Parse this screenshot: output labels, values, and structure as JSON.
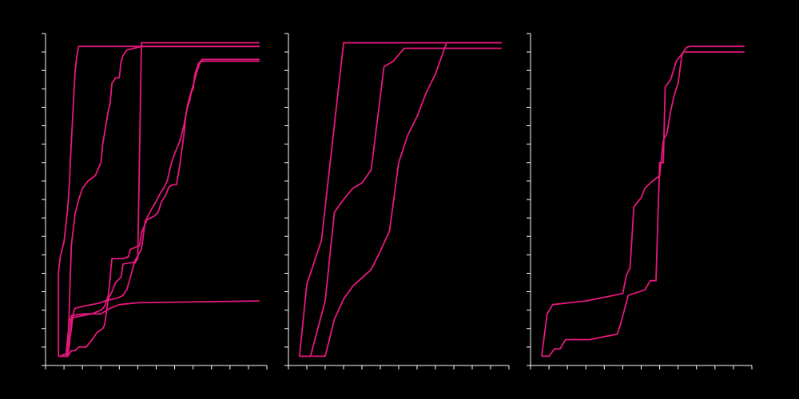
{
  "chart_data": [
    {
      "type": "line",
      "title": "",
      "xlabel": "",
      "ylabel": "",
      "xlim": [
        0,
        12
      ],
      "ylim": [
        0,
        18
      ],
      "x_ticks": [
        0,
        1,
        2,
        3,
        4,
        5,
        6,
        7,
        8,
        9,
        10,
        11,
        12
      ],
      "y_ticks": [
        0,
        1,
        2,
        3,
        4,
        5,
        6,
        7,
        8,
        9,
        10,
        11,
        12,
        13,
        14,
        15,
        16,
        17,
        18
      ],
      "tick_labels_visible": false,
      "grid": false,
      "series_color": "#e6187e",
      "series": [
        {
          "x": [
            0.7,
            0.7,
            0.75,
            0.8,
            0.9,
            1.0,
            1.05,
            1.1,
            1.2,
            1.3,
            1.35,
            1.4,
            1.5,
            1.6,
            1.7,
            1.8,
            11.6
          ],
          "y": [
            0.5,
            5.0,
            5.5,
            5.9,
            6.3,
            6.7,
            7.1,
            7.6,
            8.5,
            10.0,
            11.2,
            12.1,
            14.0,
            15.9,
            16.8,
            17.3,
            17.3
          ]
        },
        {
          "x": [
            1.2,
            1.25,
            1.3,
            1.4,
            1.6,
            1.8,
            2.0,
            2.3,
            2.7,
            3.0,
            3.1,
            3.2,
            3.4,
            3.5,
            3.6,
            3.8,
            4.0,
            4.1,
            4.2,
            4.4,
            5.2,
            11.6
          ],
          "y": [
            0.5,
            2.0,
            3.5,
            6.5,
            8.2,
            9.0,
            9.6,
            10.0,
            10.3,
            11.0,
            12.0,
            12.6,
            13.8,
            14.2,
            15.3,
            15.6,
            15.6,
            16.5,
            16.8,
            17.1,
            17.3,
            17.3
          ]
        },
        {
          "x": [
            0.7,
            0.8,
            1.0,
            1.2,
            1.4,
            1.5,
            1.55,
            1.6,
            2.0,
            2.5,
            3.0,
            3.2,
            3.7,
            4.0,
            4.2,
            4.4,
            4.6,
            4.8,
            5.0,
            5.2,
            11.6
          ],
          "y": [
            0.5,
            0.5,
            0.6,
            0.6,
            2.0,
            2.8,
            3.0,
            3.1,
            3.2,
            3.3,
            3.4,
            3.5,
            3.6,
            3.7,
            3.8,
            4.1,
            4.8,
            5.5,
            5.8,
            17.5,
            17.5
          ]
        },
        {
          "x": [
            0.7,
            0.9,
            1.1,
            1.3,
            1.5,
            2.0,
            2.5,
            3.0,
            3.2,
            3.4,
            3.5,
            3.55,
            3.6,
            3.8,
            4.2,
            4.5,
            4.6,
            5.1,
            5.2,
            5.5,
            5.9,
            6.1,
            6.3,
            6.5,
            6.7,
            6.9,
            7.1,
            7.3,
            7.5,
            7.6,
            7.7,
            7.8,
            7.9,
            8.0,
            8.1,
            8.3,
            8.5,
            11.6
          ],
          "y": [
            0.5,
            0.5,
            0.5,
            2.5,
            2.6,
            2.7,
            2.8,
            3.0,
            3.2,
            3.8,
            4.7,
            5.3,
            5.8,
            5.8,
            5.8,
            5.9,
            6.3,
            6.5,
            7.2,
            7.9,
            8.1,
            8.3,
            8.9,
            9.2,
            9.7,
            9.8,
            9.8,
            11.0,
            12.5,
            13.5,
            14.0,
            14.3,
            14.8,
            15.0,
            15.8,
            16.4,
            16.5,
            16.5
          ]
        },
        {
          "x": [
            0.7,
            1.2,
            1.4,
            1.6,
            1.8,
            2.0,
            2.2,
            2.6,
            2.8,
            3.1,
            3.2,
            3.4,
            3.6,
            3.8,
            4.1,
            4.2,
            4.8,
            5.2,
            5.4,
            5.7,
            6.0,
            6.2,
            6.4,
            6.6,
            6.8,
            7.0,
            7.3,
            7.5,
            7.7,
            7.8,
            8.0,
            8.2,
            8.4,
            8.5,
            8.7,
            11.6
          ],
          "y": [
            0.5,
            0.5,
            0.8,
            0.8,
            1.0,
            1.0,
            1.0,
            1.5,
            1.8,
            2.0,
            2.2,
            3.6,
            4.0,
            4.5,
            4.8,
            5.5,
            5.6,
            6.3,
            7.8,
            8.4,
            8.9,
            9.3,
            9.6,
            10.0,
            10.9,
            11.5,
            12.2,
            13.0,
            14.1,
            14.5,
            15.2,
            15.9,
            16.5,
            16.6,
            16.6,
            16.6
          ]
        },
        {
          "x": [
            0.7,
            1.0,
            1.2,
            1.3,
            1.4,
            2.0,
            3.0,
            3.5,
            4.0,
            5.0,
            11.6
          ],
          "y": [
            0.5,
            0.5,
            0.5,
            1.2,
            2.7,
            2.8,
            2.8,
            3.1,
            3.3,
            3.4,
            3.5
          ]
        }
      ]
    },
    {
      "type": "line",
      "title": "",
      "xlabel": "",
      "ylabel": "",
      "xlim": [
        0,
        12
      ],
      "ylim": [
        0,
        18
      ],
      "x_ticks": [
        0,
        1,
        2,
        3,
        4,
        5,
        6,
        7,
        8,
        9,
        10,
        11,
        12
      ],
      "y_ticks": [
        0,
        1,
        2,
        3,
        4,
        5,
        6,
        7,
        8,
        9,
        10,
        11,
        12,
        13,
        14,
        15,
        16,
        17,
        18
      ],
      "tick_labels_visible": false,
      "grid": false,
      "series_color": "#e6187e",
      "series": [
        {
          "x": [
            0.6,
            1.0,
            1.8,
            3.0,
            11.6
          ],
          "y": [
            0.5,
            4.4,
            6.8,
            17.5,
            17.5
          ]
        },
        {
          "x": [
            0.6,
            1.2,
            2.0,
            2.5,
            3.0,
            3.5,
            4.0,
            4.5,
            5.2,
            5.7,
            6.3,
            11.6
          ],
          "y": [
            0.5,
            0.5,
            3.5,
            8.3,
            9.0,
            9.6,
            9.9,
            10.6,
            16.2,
            16.5,
            17.2,
            17.2
          ]
        },
        {
          "x": [
            0.6,
            2.0,
            2.5,
            3.0,
            3.5,
            4.5,
            5.0,
            5.5,
            6.0,
            6.5,
            7.0,
            7.5,
            8.0,
            8.6,
            11.6
          ],
          "y": [
            0.5,
            0.5,
            2.5,
            3.6,
            4.3,
            5.2,
            6.2,
            7.3,
            11.0,
            12.5,
            13.5,
            14.8,
            15.8,
            17.5,
            17.5
          ]
        }
      ]
    },
    {
      "type": "line",
      "title": "",
      "xlabel": "",
      "ylabel": "",
      "xlim": [
        0,
        12
      ],
      "ylim": [
        0,
        18
      ],
      "x_ticks": [
        0,
        1,
        2,
        3,
        4,
        5,
        6,
        7,
        8,
        9,
        10,
        11,
        12
      ],
      "y_ticks": [
        0,
        1,
        2,
        3,
        4,
        5,
        6,
        7,
        8,
        9,
        10,
        11,
        12,
        13,
        14,
        15,
        16,
        17,
        18
      ],
      "tick_labels_visible": false,
      "grid": false,
      "series_color": "#e6187e",
      "series": [
        {
          "x": [
            0.6,
            0.9,
            1.2,
            3.0,
            5.0,
            5.2,
            5.4,
            5.6,
            6.0,
            6.2,
            6.5,
            7.0,
            7.2,
            7.4,
            7.6,
            7.8,
            8.0,
            8.2,
            8.4,
            8.6,
            11.6
          ],
          "y": [
            0.5,
            2.8,
            3.3,
            3.5,
            3.9,
            4.9,
            5.3,
            8.6,
            9.1,
            9.6,
            9.9,
            10.3,
            12.2,
            12.6,
            13.8,
            14.7,
            15.3,
            16.8,
            17.2,
            17.3,
            17.3
          ]
        },
        {
          "x": [
            0.6,
            1.0,
            1.3,
            1.6,
            1.9,
            2.4,
            3.2,
            4.7,
            4.9,
            5.3,
            6.2,
            6.5,
            6.8,
            7.0,
            7.2,
            7.3,
            7.6,
            7.9,
            8.3,
            11.6
          ],
          "y": [
            0.5,
            0.5,
            0.9,
            0.9,
            1.4,
            1.4,
            1.4,
            1.7,
            2.3,
            3.8,
            4.1,
            4.6,
            4.6,
            11.0,
            11.0,
            15.1,
            15.5,
            16.5,
            17.0,
            17.0
          ]
        }
      ]
    }
  ]
}
